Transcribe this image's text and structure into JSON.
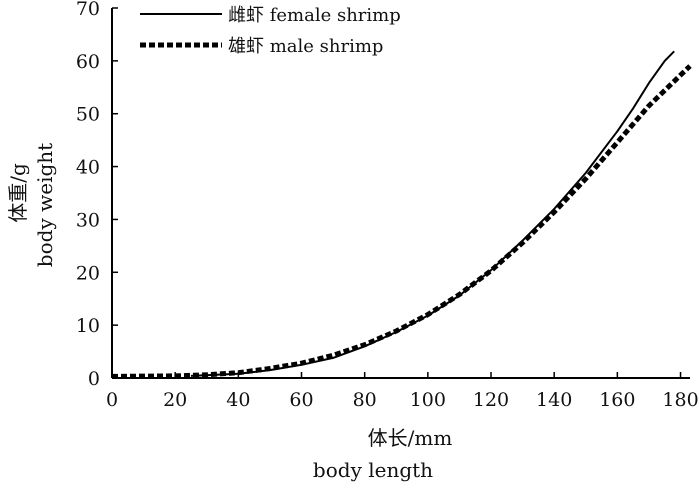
{
  "chart_data": {
    "type": "line",
    "title": "",
    "xlabel": "体长/mm",
    "xlabel_en": "body length",
    "ylabel": "体重/g",
    "ylabel_en": "body weight",
    "xlim": [
      0,
      183
    ],
    "ylim": [
      0,
      70
    ],
    "xticks": [
      0,
      20,
      40,
      60,
      80,
      100,
      120,
      140,
      160,
      180
    ],
    "yticks": [
      0,
      10,
      20,
      30,
      40,
      50,
      60,
      70
    ],
    "grid": false,
    "legend_position": "top-left",
    "series": [
      {
        "name": "雌虾 female shrimp",
        "style": "solid",
        "color": "#000000",
        "x": [
          25,
          40,
          50,
          60,
          70,
          80,
          90,
          100,
          110,
          120,
          130,
          140,
          150,
          160,
          165,
          170,
          175,
          178
        ],
        "y": [
          0.4,
          0.8,
          1.5,
          2.5,
          3.8,
          6.0,
          8.7,
          11.8,
          15.6,
          20.4,
          26.0,
          32.0,
          38.8,
          46.7,
          51.0,
          55.8,
          60.0,
          61.8
        ]
      },
      {
        "name": "雄虾 male shrimp",
        "style": "dashed",
        "color": "#000000",
        "x": [
          0,
          20,
          30,
          40,
          50,
          60,
          70,
          80,
          90,
          100,
          110,
          120,
          130,
          140,
          150,
          160,
          170,
          180,
          183
        ],
        "y": [
          0.3,
          0.4,
          0.6,
          1.0,
          1.8,
          2.8,
          4.3,
          6.3,
          8.9,
          12.0,
          15.8,
          20.3,
          25.6,
          31.4,
          37.7,
          44.6,
          51.5,
          57.3,
          59.0
        ]
      }
    ]
  }
}
